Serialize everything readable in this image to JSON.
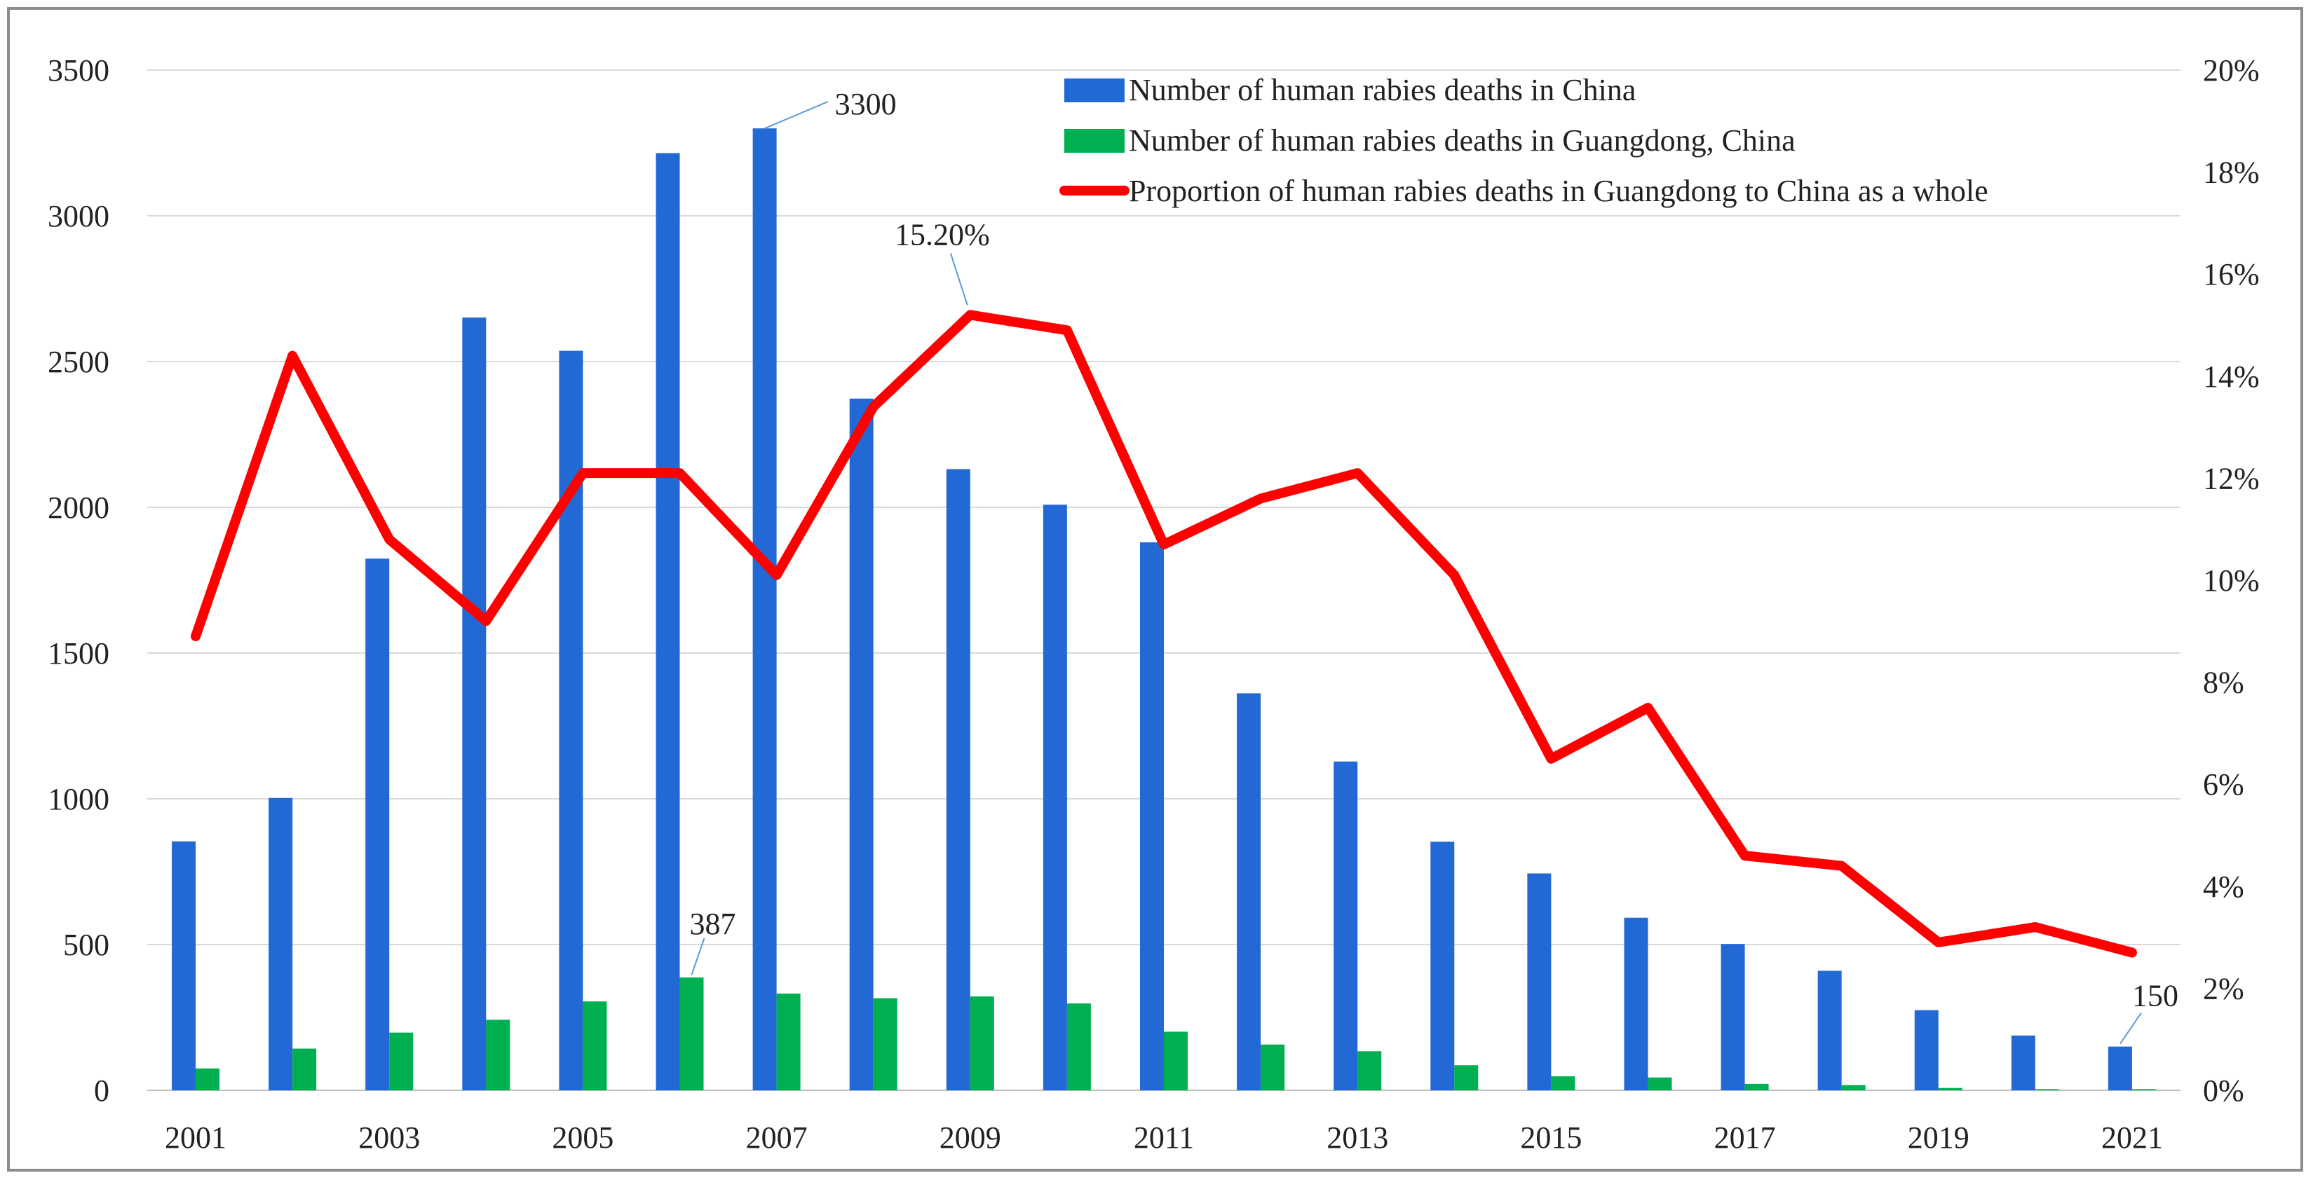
{
  "chart_data": {
    "type": "bar",
    "title": "",
    "categories": [
      "2001",
      "2002",
      "2003",
      "2004",
      "2005",
      "2006",
      "2007",
      "2008",
      "2009",
      "2010",
      "2011",
      "2012",
      "2013",
      "2014",
      "2015",
      "2016",
      "2017",
      "2018",
      "2019",
      "2020",
      "2021"
    ],
    "x_tick_labels": [
      "2001",
      "2003",
      "2005",
      "2007",
      "2009",
      "2011",
      "2013",
      "2015",
      "2017",
      "2019",
      "2021"
    ],
    "series": [
      {
        "name": "Number of human rabies deaths in China",
        "type": "bar",
        "axis": "left",
        "color": "#2369d6",
        "values": [
          854,
          1003,
          1824,
          2651,
          2537,
          3215,
          3300,
          2373,
          2131,
          2009,
          1880,
          1362,
          1128,
          853,
          744,
          592,
          502,
          410,
          275,
          188,
          150
        ]
      },
      {
        "name": "Number of human rabies deaths in Guangdong, China",
        "type": "bar",
        "axis": "left",
        "color": "#00b050",
        "values": [
          75,
          143,
          198,
          242,
          305,
          387,
          332,
          316,
          322,
          298,
          201,
          157,
          134,
          86,
          48,
          44,
          22,
          18,
          8,
          4,
          4
        ]
      },
      {
        "name": "Proportion of human rabies deaths in Guangdong to China as a whole",
        "type": "line",
        "axis": "right",
        "color": "#ff0000",
        "values": [
          8.9,
          14.4,
          10.8,
          9.2,
          12.1,
          12.1,
          10.1,
          13.4,
          15.2,
          14.9,
          10.7,
          11.6,
          12.1,
          10.1,
          6.5,
          7.5,
          4.6,
          4.4,
          2.9,
          3.2,
          2.7
        ]
      }
    ],
    "ylim_left": [
      0,
      3500
    ],
    "y_ticks_left": [
      "0",
      "500",
      "1000",
      "1500",
      "2000",
      "2500",
      "3000",
      "3500"
    ],
    "ylim_right": [
      0,
      20
    ],
    "y_ticks_right": [
      "0%",
      "2%",
      "4%",
      "6%",
      "8%",
      "10%",
      "12%",
      "14%",
      "16%",
      "18%",
      "20%"
    ],
    "grid": true,
    "legend": {
      "placement": "top-right",
      "entries": [
        "Number of human rabies deaths in China",
        "Number of human rabies deaths in Guangdong, China",
        "Proportion of human rabies deaths in Guangdong to China as a whole"
      ]
    },
    "annotations": [
      {
        "text": "3300",
        "series": 0,
        "index": 6
      },
      {
        "text": "387",
        "series": 1,
        "index": 5
      },
      {
        "text": "15.20%",
        "series": 2,
        "index": 8
      },
      {
        "text": "150",
        "series": 0,
        "index": 20
      }
    ],
    "colors": {
      "grid": "#d9d9d9",
      "axis": "#bfbfbf",
      "leader": "#5b9bd5"
    }
  }
}
